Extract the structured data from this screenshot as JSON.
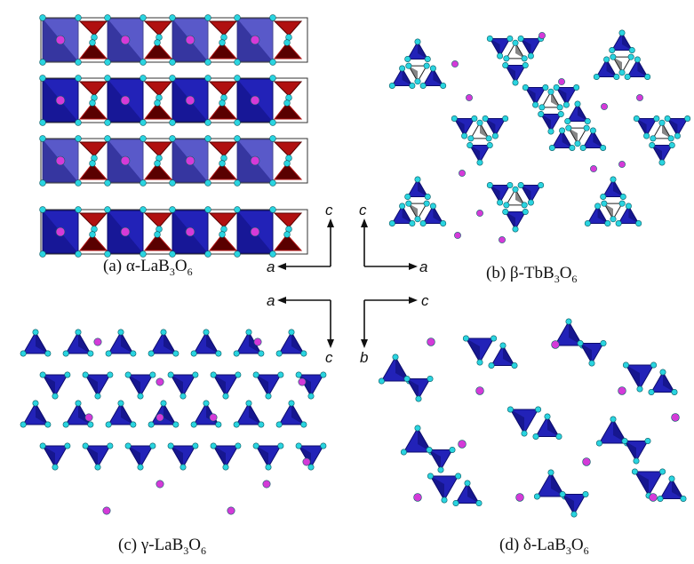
{
  "panels": [
    {
      "id": "a",
      "prefix": "(a) ",
      "greek": "α",
      "formula": "-LaB",
      "sub1": "3",
      "o": "O",
      "sub2": "6"
    },
    {
      "id": "b",
      "prefix": "(b) ",
      "greek": "β",
      "formula": "-TbB",
      "sub1": "3",
      "o": "O",
      "sub2": "6"
    },
    {
      "id": "c",
      "prefix": "(c) ",
      "greek": "γ",
      "formula": "-LaB",
      "sub1": "3",
      "o": "O",
      "sub2": "6"
    },
    {
      "id": "d",
      "prefix": "(d) ",
      "greek": "δ",
      "formula": "-LaB",
      "sub1": "3",
      "o": "O",
      "sub2": "6"
    }
  ],
  "axes": [
    {
      "id": "axes-a",
      "horizontal": "a",
      "vertical": "c"
    },
    {
      "id": "axes-b",
      "horizontal": "a",
      "vertical": "c"
    },
    {
      "id": "axes-c",
      "horizontal": "a",
      "vertical": "c"
    },
    {
      "id": "axes-d",
      "horizontal": "c",
      "vertical": "b"
    }
  ],
  "colors": {
    "polyhedron_blue": "#2222b8",
    "polyhedron_blue_dark": "#0c0c6e",
    "polyhedron_red": "#b01010",
    "polyhedron_red_dark": "#5a0000",
    "oxygen_cyan": "#2ad4e0",
    "metal_magenta": "#d43ad8"
  }
}
